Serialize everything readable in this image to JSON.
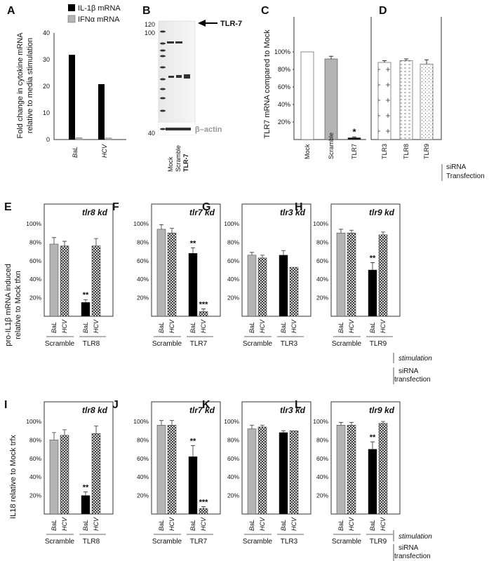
{
  "panel_letters": {
    "A": "A",
    "B": "B",
    "C": "C",
    "D": "D",
    "E": "E",
    "F": "F",
    "G": "G",
    "H": "H",
    "I": "I",
    "J": "J",
    "K": "K",
    "L": "L"
  },
  "legend_A": [
    "IL-1β mRNA",
    "IFNα mRNA"
  ],
  "ylabel_A": [
    "Fold change in cytokine mRNA",
    "relative to media stimulation"
  ],
  "ylabel_C": "TLR7 mRNA compared to Mock",
  "ylabel_EH": [
    "pro-IL1β mRNA induced",
    "relative to Mock tfxn"
  ],
  "ylabel_IL": "IL18 relative to Mock trfx",
  "notes": {
    "sirna_transfection": [
      "siRNA",
      "Transfection"
    ],
    "stimulation": "stimulation",
    "sirna_transfection_lower": [
      "siRNA",
      "transfection"
    ]
  },
  "blot": {
    "markers": [
      "120",
      "100",
      "40"
    ],
    "tlr7_label": "TLR-7",
    "actin_label": "β–actin",
    "lanes": [
      "Mock",
      "Scramble",
      "TLR-7"
    ]
  },
  "colors": {
    "black": "#000000",
    "gray": "#b4b4b4",
    "white": "#ffffff",
    "line": "#333333"
  },
  "chart_data": [
    {
      "id": "A",
      "type": "bar",
      "categories": [
        "BaL",
        "HCV"
      ],
      "ylim": [
        0,
        40
      ],
      "yticks": [
        "0",
        "10",
        "20",
        "30",
        "40"
      ],
      "series": [
        {
          "name": "IL-1β mRNA",
          "values": [
            31.8,
            20.8
          ]
        },
        {
          "name": "IFNα mRNA",
          "values": [
            0.7,
            0.6
          ]
        }
      ]
    },
    {
      "id": "C",
      "type": "bar",
      "categories": [
        "Mock",
        "Scramble",
        "TLR7"
      ],
      "values": [
        100,
        92,
        2
      ],
      "errors": [
        0,
        3,
        1
      ],
      "ylim": [
        0,
        100
      ],
      "yticks": [
        "20%",
        "40%",
        "60%",
        "80%",
        "100%"
      ],
      "stars": [
        "",
        "",
        "*"
      ]
    },
    {
      "id": "D",
      "type": "bar",
      "categories": [
        "TLR3",
        "TLR8",
        "TLR9"
      ],
      "values": [
        88,
        90,
        86
      ],
      "errors": [
        2,
        2,
        5
      ],
      "ylim": [
        0,
        100
      ]
    },
    {
      "id": "E",
      "type": "bar",
      "kd": "tlr8 kd",
      "groups": [
        "Scramble",
        "TLR8"
      ],
      "stim": [
        "BaL",
        "HCV"
      ],
      "values": [
        78,
        76,
        15,
        76
      ],
      "errors": [
        7,
        5,
        3,
        8
      ],
      "stars": [
        "",
        "",
        "**",
        ""
      ],
      "yticks": [
        "20%",
        "40%",
        "60%",
        "80%",
        "100%"
      ]
    },
    {
      "id": "F",
      "type": "bar",
      "kd": "tlr7 kd",
      "groups": [
        "Scramble",
        "TLR7"
      ],
      "stim": [
        "BaL",
        "HCV"
      ],
      "values": [
        94,
        90,
        68,
        5
      ],
      "errors": [
        5,
        5,
        6,
        3
      ],
      "stars": [
        "",
        "",
        "**",
        "***"
      ],
      "yticks": [
        "20%",
        "40%",
        "60%",
        "80%",
        "100%"
      ]
    },
    {
      "id": "G",
      "type": "bar",
      "kd": "tlr3 kd",
      "groups": [
        "Scramble",
        "TLR3"
      ],
      "stim": [
        "BaL",
        "HCV"
      ],
      "values": [
        66,
        63,
        66,
        53
      ],
      "errors": [
        3,
        3,
        5,
        0
      ],
      "stars": [
        "",
        "",
        "",
        ""
      ],
      "yticks": [
        "20%",
        "40%",
        "60%",
        "80%",
        "100%"
      ]
    },
    {
      "id": "H",
      "type": "bar",
      "kd": "tlr9 kd",
      "groups": [
        "Scramble",
        "TLR9"
      ],
      "stim": [
        "BaL",
        "HCV"
      ],
      "values": [
        90,
        90,
        50,
        88
      ],
      "errors": [
        4,
        3,
        8,
        3
      ],
      "stars": [
        "",
        "",
        "**",
        ""
      ],
      "yticks": [
        "20%",
        "40%",
        "60%",
        "80%",
        "100%"
      ]
    },
    {
      "id": "I",
      "type": "bar",
      "kd": "tlr8 kd",
      "groups": [
        "Scramble",
        "TLR8"
      ],
      "stim": [
        "BaL",
        "HCV"
      ],
      "values": [
        80,
        85,
        20,
        87
      ],
      "errors": [
        8,
        6,
        4,
        8
      ],
      "stars": [
        "",
        "",
        "**",
        ""
      ],
      "yticks": [
        "20%",
        "40%",
        "60%",
        "80%",
        "100%"
      ]
    },
    {
      "id": "J",
      "type": "bar",
      "kd": "tlr7 kd",
      "groups": [
        "Scramble",
        "TLR7"
      ],
      "stim": [
        "BaL",
        "HCV"
      ],
      "values": [
        96,
        96,
        62,
        6
      ],
      "errors": [
        5,
        5,
        12,
        2
      ],
      "stars": [
        "",
        "",
        "**",
        "***"
      ],
      "yticks": [
        "20%",
        "40%",
        "60%",
        "80%",
        "100%"
      ]
    },
    {
      "id": "K",
      "type": "bar",
      "kd": "tlr3 kd",
      "groups": [
        "Scramble",
        "TLR3"
      ],
      "stim": [
        "BaL",
        "HCV"
      ],
      "values": [
        92,
        94,
        88,
        90
      ],
      "errors": [
        4,
        2,
        2,
        0
      ],
      "stars": [
        "",
        "",
        "",
        ""
      ],
      "yticks": [
        "20%",
        "40%",
        "60%",
        "80%",
        "100%"
      ]
    },
    {
      "id": "L",
      "type": "bar",
      "kd": "tlr9 kd",
      "groups": [
        "Scramble",
        "TLR9"
      ],
      "stim": [
        "BaL",
        "HCV"
      ],
      "values": [
        96,
        96,
        70,
        98
      ],
      "errors": [
        3,
        3,
        8,
        2
      ],
      "stars": [
        "",
        "",
        "**",
        ""
      ],
      "yticks": [
        "20%",
        "40%",
        "60%",
        "80%",
        "100%"
      ]
    }
  ]
}
